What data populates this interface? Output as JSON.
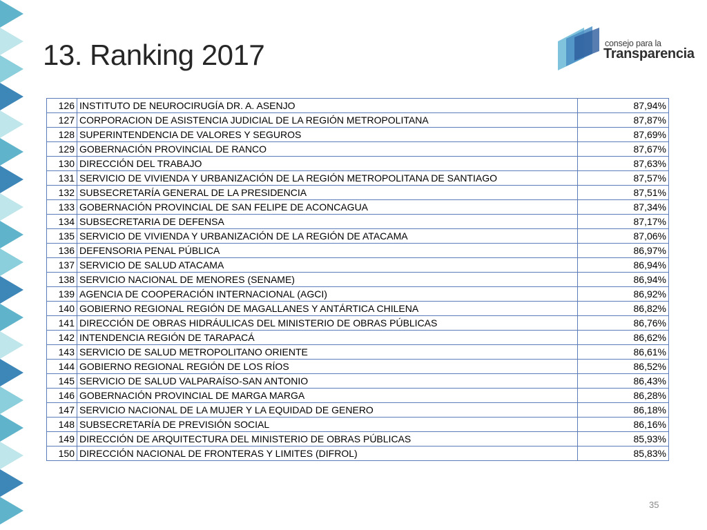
{
  "slide": {
    "title": "13. Ranking 2017",
    "page_number": "35"
  },
  "logo": {
    "line1": "consejo para la",
    "line2": "Transparencia"
  },
  "colors": {
    "table_border": "#5b7cb8",
    "deco_light": "#bfe6ea",
    "deco_mid": "#5fb4cc",
    "deco_dark": "#3c86b8"
  },
  "table": {
    "rows": [
      {
        "rank": "126",
        "institution": "INSTITUTO DE NEUROCIRUGÍA DR. A. ASENJO",
        "score": "87,94%"
      },
      {
        "rank": "127",
        "institution": "CORPORACION DE ASISTENCIA JUDICIAL DE LA REGIÓN METROPOLITANA",
        "score": "87,87%"
      },
      {
        "rank": "128",
        "institution": "SUPERINTENDENCIA DE VALORES Y SEGUROS",
        "score": "87,69%"
      },
      {
        "rank": "129",
        "institution": "GOBERNACIÓN PROVINCIAL DE RANCO",
        "score": "87,67%"
      },
      {
        "rank": "130",
        "institution": "DIRECCIÓN DEL TRABAJO",
        "score": "87,63%"
      },
      {
        "rank": "131",
        "institution": "SERVICIO DE VIVIENDA Y URBANIZACIÓN DE LA REGIÓN METROPOLITANA DE SANTIAGO",
        "score": "87,57%"
      },
      {
        "rank": "132",
        "institution": "SUBSECRETARÍA GENERAL DE LA PRESIDENCIA",
        "score": "87,51%"
      },
      {
        "rank": "133",
        "institution": "GOBERNACIÓN PROVINCIAL DE SAN FELIPE DE ACONCAGUA",
        "score": "87,34%"
      },
      {
        "rank": "134",
        "institution": "SUBSECRETARIA DE DEFENSA",
        "score": "87,17%"
      },
      {
        "rank": "135",
        "institution": "SERVICIO DE VIVIENDA Y URBANIZACIÓN DE LA REGIÓN DE ATACAMA",
        "score": "87,06%"
      },
      {
        "rank": "136",
        "institution": "DEFENSORIA PENAL PÚBLICA",
        "score": "86,97%"
      },
      {
        "rank": "137",
        "institution": "SERVICIO DE SALUD ATACAMA",
        "score": "86,94%"
      },
      {
        "rank": "138",
        "institution": "SERVICIO NACIONAL DE MENORES (SENAME)",
        "score": "86,94%"
      },
      {
        "rank": "139",
        "institution": "AGENCIA DE COOPERACIÓN INTERNACIONAL (AGCI)",
        "score": "86,92%"
      },
      {
        "rank": "140",
        "institution": "GOBIERNO REGIONAL REGIÓN DE MAGALLANES Y ANTÁRTICA CHILENA",
        "score": "86,82%"
      },
      {
        "rank": "141",
        "institution": "DIRECCIÓN DE OBRAS HIDRÁULICAS DEL MINISTERIO DE OBRAS PÚBLICAS",
        "score": "86,76%"
      },
      {
        "rank": "142",
        "institution": "INTENDENCIA REGIÓN DE TARAPACÁ",
        "score": "86,62%"
      },
      {
        "rank": "143",
        "institution": "SERVICIO DE SALUD METROPOLITANO ORIENTE",
        "score": "86,61%"
      },
      {
        "rank": "144",
        "institution": "GOBIERNO REGIONAL REGIÓN DE LOS RÍOS",
        "score": "86,52%"
      },
      {
        "rank": "145",
        "institution": "SERVICIO DE SALUD VALPARAÍSO-SAN ANTONIO",
        "score": "86,43%"
      },
      {
        "rank": "146",
        "institution": "GOBERNACIÓN PROVINCIAL DE MARGA MARGA",
        "score": "86,28%"
      },
      {
        "rank": "147",
        "institution": "SERVICIO NACIONAL DE LA MUJER Y LA EQUIDAD DE GENERO",
        "score": "86,18%"
      },
      {
        "rank": "148",
        "institution": "SUBSECRETARÍA DE PREVISIÓN SOCIAL",
        "score": "86,16%"
      },
      {
        "rank": "149",
        "institution": "DIRECCIÓN DE ARQUITECTURA DEL MINISTERIO DE OBRAS PÚBLICAS",
        "score": "85,93%"
      },
      {
        "rank": "150",
        "institution": "DIRECCIÓN NACIONAL DE FRONTERAS Y LIMITES (DIFROL)",
        "score": "85,83%"
      }
    ]
  }
}
